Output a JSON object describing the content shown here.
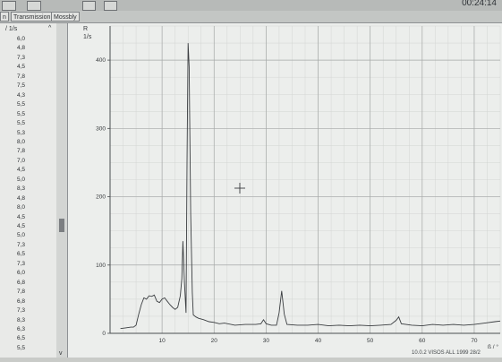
{
  "tabs": [
    "n",
    "Transmission",
    "Mossbly"
  ],
  "clock": "00:24:14",
  "left_panel": {
    "header": "/ 1/s",
    "values": [
      "6,0",
      "4,8",
      "7,3",
      "4,5",
      "7,8",
      "7,5",
      "4,3",
      "5,5",
      "5,5",
      "5,5",
      "5,3",
      "8,0",
      "7,8",
      "7,0",
      "4,5",
      "5,0",
      "8,3",
      "4,8",
      "8,0",
      "4,5",
      "4,5",
      "5,0",
      "7,3",
      "6,5",
      "7,3",
      "6,0",
      "6,8",
      "7,8",
      "6,8",
      "7,3",
      "8,3",
      "6,3",
      "6,5",
      "5,5"
    ]
  },
  "status_text": "10.0.2 VISOS ALL 1999 28/2",
  "chart_data": {
    "type": "line",
    "ylabel": "R 1/s",
    "xlabel": "ß / °",
    "xlim": [
      0,
      75
    ],
    "ylim": [
      0,
      450
    ],
    "x_ticks": [
      "10",
      "20",
      "30",
      "40",
      "50",
      "60",
      "70"
    ],
    "y_ticks": [
      "0",
      "100",
      "200",
      "300",
      "400"
    ],
    "grid": true,
    "series": [
      {
        "x": [
          2,
          3,
          4,
          4.5,
          5,
          5.5,
          6,
          6.5,
          7,
          7.5,
          8,
          8.5,
          9,
          9.5,
          10,
          10.5,
          11,
          11.5,
          12,
          12.5,
          13,
          13.5,
          13.8,
          14,
          14.3,
          14.6,
          14.8,
          15,
          15.2,
          15.5,
          15.8,
          16,
          16.5,
          17,
          18,
          19,
          20,
          21,
          22,
          24,
          26,
          28,
          29,
          29.5,
          30,
          31,
          32,
          32.5,
          33,
          33.5,
          34,
          36,
          38,
          40,
          42,
          44,
          46,
          48,
          50,
          52,
          54,
          55,
          55.5,
          56,
          58,
          60,
          62,
          64,
          66,
          68,
          70,
          72,
          74,
          75
        ],
        "y": [
          7,
          8,
          9,
          9,
          12,
          28,
          42,
          52,
          50,
          55,
          54,
          56,
          47,
          45,
          50,
          52,
          47,
          42,
          38,
          35,
          38,
          55,
          80,
          135,
          75,
          30,
          250,
          425,
          390,
          175,
          60,
          27,
          24,
          22,
          20,
          17,
          16,
          14,
          15,
          12,
          13,
          13,
          14,
          20,
          14,
          12,
          12,
          30,
          62,
          28,
          13,
          12,
          12,
          13,
          11,
          12,
          11,
          12,
          11,
          12,
          13,
          19,
          24,
          14,
          12,
          11,
          13,
          12,
          13,
          12,
          13,
          15,
          17,
          18
        ]
      }
    ],
    "cursor_marker": "+"
  }
}
